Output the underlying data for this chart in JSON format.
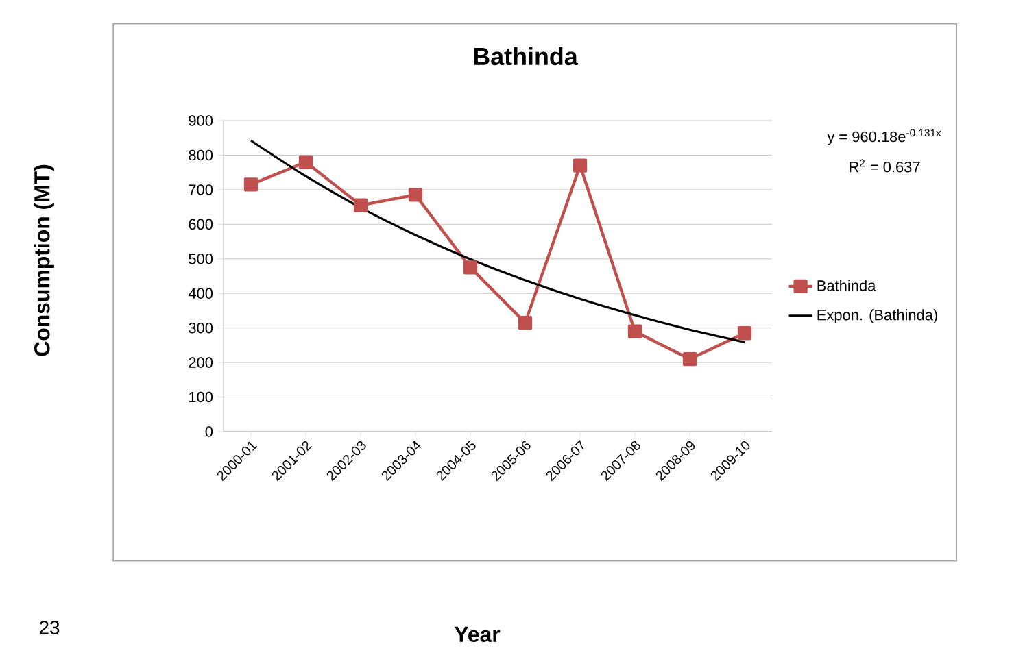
{
  "chart_data": {
    "type": "line",
    "title": "Bathinda",
    "categories": [
      "2000-01",
      "2001-02",
      "2002-03",
      "2003-04",
      "2004-05",
      "2005-06",
      "2006-07",
      "2007-08",
      "2008-09",
      "2009-10"
    ],
    "series": [
      {
        "name": "Bathinda",
        "color": "#c0504d",
        "marker": "square",
        "values": [
          715,
          780,
          655,
          685,
          475,
          315,
          770,
          290,
          210,
          285
        ]
      },
      {
        "name": "Expon. (Bathinda)",
        "color": "#000000",
        "marker": "none",
        "values": [
          842,
          739,
          648,
          569,
          499,
          438,
          384,
          337,
          295,
          259
        ]
      }
    ],
    "ylim": [
      0,
      900
    ],
    "yticks": [
      0,
      100,
      200,
      300,
      400,
      500,
      600,
      700,
      800,
      900
    ],
    "grid": "y",
    "legend": "right",
    "annotations": [
      "y = 960.18e$^{-0.131x}$",
      "R$^{2}$ = 0.637",
      "23",
      "Year",
      "Consumption  (MT)"
    ]
  }
}
